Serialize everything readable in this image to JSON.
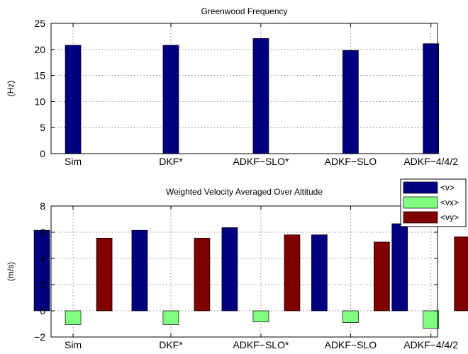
{
  "chart_data": [
    {
      "type": "bar",
      "title": "Greenwood Frequency",
      "xlabel": "",
      "ylabel": "(Hz)",
      "ylim": [
        0,
        25
      ],
      "yticks": [
        0,
        5,
        10,
        15,
        20,
        25
      ],
      "grid": true,
      "categories": [
        "Sim",
        "DKF*",
        "ADKF−SLO*",
        "ADKF−SLO",
        "ADKF−4/4/2"
      ],
      "series": [
        {
          "values": [
            20.8,
            20.8,
            22.1,
            19.8,
            21.1
          ],
          "color": "#000080"
        }
      ]
    },
    {
      "type": "bar",
      "title": "Weighted Velocity Averaged Over Altitude",
      "xlabel": "",
      "ylabel": "(m/s)",
      "ylim": [
        -2,
        8
      ],
      "yticks": [
        -2,
        0,
        2,
        4,
        6,
        8
      ],
      "grid": true,
      "legend_placement": "top-right",
      "categories": [
        "Sim",
        "DKF*",
        "ADKF−SLO*",
        "ADKF−SLO",
        "ADKF−4/4/2"
      ],
      "series": [
        {
          "name": "<v>",
          "values": [
            6.15,
            6.15,
            6.35,
            5.8,
            6.65
          ],
          "color": "#000080"
        },
        {
          "name": "<vx>",
          "values": [
            -1.05,
            -1.05,
            -0.85,
            -0.9,
            -1.35
          ],
          "color": "#80ff80"
        },
        {
          "name": "<vy>",
          "values": [
            5.55,
            5.55,
            5.8,
            5.25,
            5.65
          ],
          "color": "#800000"
        }
      ]
    }
  ]
}
